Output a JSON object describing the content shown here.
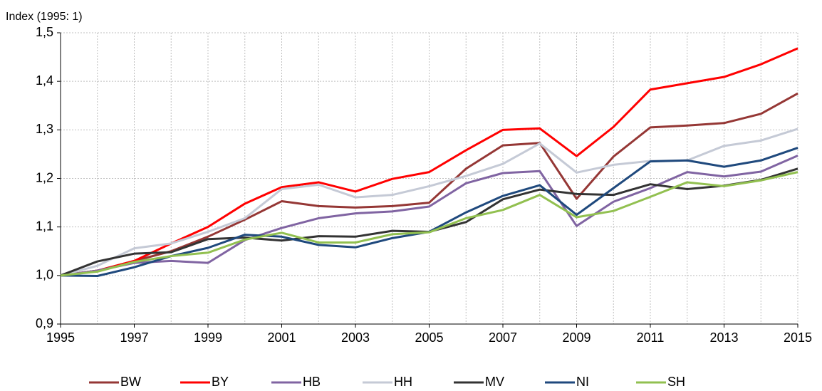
{
  "chart_data": {
    "type": "line",
    "y_label": "Index (1995: 1)",
    "x": [
      1995,
      1996,
      1997,
      1998,
      1999,
      2000,
      2001,
      2002,
      2003,
      2004,
      2005,
      2006,
      2007,
      2008,
      2009,
      2010,
      2011,
      2012,
      2013,
      2014,
      2015
    ],
    "xlim": [
      1995,
      2015
    ],
    "xticks": [
      1995,
      1997,
      1999,
      2001,
      2003,
      2005,
      2007,
      2009,
      2011,
      2013,
      2015
    ],
    "ylim": [
      0.9,
      1.5
    ],
    "yticks": [
      {
        "value": 0.9,
        "label": "0,9"
      },
      {
        "value": 1.0,
        "label": "1,0"
      },
      {
        "value": 1.1,
        "label": "1,1"
      },
      {
        "value": 1.2,
        "label": "1,2"
      },
      {
        "value": 1.3,
        "label": "1,3"
      },
      {
        "value": 1.4,
        "label": "1,4"
      },
      {
        "value": 1.5,
        "label": "1,5"
      }
    ],
    "grid": true,
    "legend": "bottom",
    "series": [
      {
        "name": "BW",
        "color": "#953735",
        "values": [
          1.0,
          1.01,
          1.03,
          1.05,
          1.08,
          1.115,
          1.153,
          1.143,
          1.14,
          1.143,
          1.15,
          1.22,
          1.268,
          1.273,
          1.158,
          1.245,
          1.305,
          1.309,
          1.314,
          1.333,
          1.375
        ]
      },
      {
        "name": "BY",
        "color": "#ff0000",
        "values": [
          1.0,
          1.01,
          1.03,
          1.066,
          1.1,
          1.148,
          1.182,
          1.192,
          1.173,
          1.199,
          1.213,
          1.258,
          1.3,
          1.303,
          1.246,
          1.306,
          1.383,
          1.396,
          1.409,
          1.435,
          1.468
        ]
      },
      {
        "name": "HB",
        "color": "#8064a2",
        "values": [
          1.0,
          1.01,
          1.026,
          1.03,
          1.026,
          1.073,
          1.098,
          1.118,
          1.128,
          1.132,
          1.142,
          1.19,
          1.211,
          1.215,
          1.102,
          1.152,
          1.18,
          1.213,
          1.204,
          1.214,
          1.247
        ]
      },
      {
        "name": "HH",
        "color": "#c5cad6",
        "values": [
          1.0,
          1.02,
          1.056,
          1.066,
          1.09,
          1.118,
          1.178,
          1.187,
          1.161,
          1.166,
          1.184,
          1.205,
          1.23,
          1.272,
          1.212,
          1.228,
          1.236,
          1.237,
          1.267,
          1.278,
          1.302
        ]
      },
      {
        "name": "MV",
        "color": "#333333",
        "values": [
          1.0,
          1.029,
          1.045,
          1.048,
          1.075,
          1.078,
          1.072,
          1.081,
          1.08,
          1.092,
          1.09,
          1.11,
          1.157,
          1.177,
          1.168,
          1.166,
          1.188,
          1.178,
          1.185,
          1.197,
          1.22
        ]
      },
      {
        "name": "NI",
        "color": "#1f497d",
        "values": [
          1.0,
          0.999,
          1.017,
          1.04,
          1.057,
          1.084,
          1.08,
          1.063,
          1.058,
          1.077,
          1.09,
          1.13,
          1.164,
          1.186,
          1.125,
          1.18,
          1.235,
          1.237,
          1.224,
          1.237,
          1.263
        ]
      },
      {
        "name": "SH",
        "color": "#92c050",
        "values": [
          1.0,
          1.008,
          1.028,
          1.04,
          1.047,
          1.074,
          1.088,
          1.068,
          1.068,
          1.085,
          1.089,
          1.118,
          1.135,
          1.166,
          1.12,
          1.133,
          1.162,
          1.192,
          1.184,
          1.196,
          1.213
        ]
      }
    ]
  }
}
